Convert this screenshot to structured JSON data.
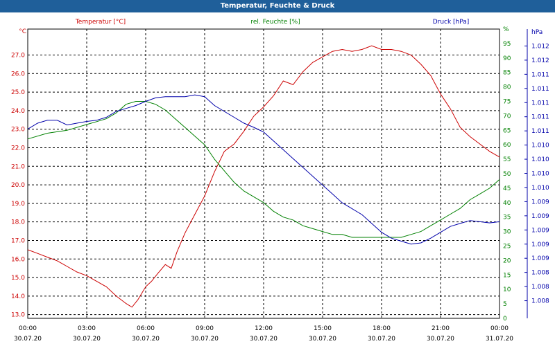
{
  "window": {
    "title": "Temperatur, Feuchte & Druck"
  },
  "chart_data": {
    "type": "line",
    "title": "Temperatur, Feuchte & Druck",
    "x_ticks": [
      {
        "t": 0,
        "time": "00:00",
        "date": "30.07.20"
      },
      {
        "t": 3,
        "time": "03:00",
        "date": "30.07.20"
      },
      {
        "t": 6,
        "time": "06:00",
        "date": "30.07.20"
      },
      {
        "t": 9,
        "time": "09:00",
        "date": "30.07.20"
      },
      {
        "t": 12,
        "time": "12:00",
        "date": "30.07.20"
      },
      {
        "t": 15,
        "time": "15:00",
        "date": "30.07.20"
      },
      {
        "t": 18,
        "time": "18:00",
        "date": "30.07.20"
      },
      {
        "t": 21,
        "time": "21:00",
        "date": "30.07.20"
      },
      {
        "t": 24,
        "time": "00:00",
        "date": "31.07.20"
      }
    ],
    "xlim": [
      0,
      24
    ],
    "axes": {
      "temperature": {
        "label": "Temperatur [°C]",
        "unit": "°C",
        "color": "#cc0000",
        "ylim": [
          12.8,
          28.4
        ],
        "ticks": [
          "13.0",
          "14.0",
          "15.0",
          "16.0",
          "17.0",
          "18.0",
          "19.0",
          "20.0",
          "21.0",
          "22.0",
          "23.0",
          "24.0",
          "25.0",
          "26.0",
          "27.0"
        ]
      },
      "humidity": {
        "label": "rel. Feuchte [%]",
        "unit": "%",
        "color": "#008000",
        "ylim": [
          0,
          100
        ],
        "ticks": [
          "0",
          "5",
          "10",
          "15",
          "20",
          "25",
          "30",
          "35",
          "40",
          "45",
          "50",
          "55",
          "60",
          "65",
          "70",
          "75",
          "80",
          "85",
          "90",
          "95",
          "%"
        ]
      },
      "pressure": {
        "label": "Druck [hPa]",
        "unit": "hPa",
        "color": "#0000aa",
        "ticks": [
          "hPa",
          "1.012",
          "1.012",
          "1.011",
          "1.011",
          "1.011",
          "1.011",
          "1.011",
          "1.010",
          "1.010",
          "1.010",
          "1.010",
          "1.009",
          "1.009",
          "1.009",
          "1.009",
          "1.009",
          "1.008",
          "1.008",
          "1.008"
        ]
      }
    },
    "series": [
      {
        "name": "Temperatur",
        "axis": "temperature",
        "color": "#cc0000",
        "x": [
          0,
          0.5,
          1,
          1.5,
          2,
          2.5,
          3,
          3.5,
          4,
          4.5,
          5,
          5.3,
          5.6,
          6,
          6.3,
          6.6,
          7,
          7.3,
          7.6,
          8,
          8.5,
          9,
          9.5,
          10,
          10.5,
          11,
          11.5,
          12,
          12.5,
          13,
          13.5,
          14,
          14.5,
          15,
          15.5,
          16,
          16.5,
          17,
          17.5,
          18,
          18.5,
          19,
          19.5,
          20,
          20.5,
          21,
          21.5,
          22,
          22.5,
          23,
          23.5,
          24
        ],
        "values": [
          16.5,
          16.3,
          16.1,
          15.9,
          15.6,
          15.3,
          15.1,
          14.8,
          14.5,
          14.0,
          13.6,
          13.4,
          13.8,
          14.5,
          14.8,
          15.2,
          15.7,
          15.5,
          16.4,
          17.4,
          18.4,
          19.4,
          20.7,
          21.8,
          22.2,
          22.9,
          23.7,
          24.2,
          24.8,
          25.6,
          25.4,
          26.1,
          26.6,
          26.9,
          27.2,
          27.3,
          27.2,
          27.3,
          27.5,
          27.3,
          27.3,
          27.2,
          27.0,
          26.5,
          25.9,
          24.9,
          24.1,
          23.1,
          22.6,
          22.2,
          21.8,
          21.5
        ]
      },
      {
        "name": "rel. Feuchte",
        "axis": "humidity",
        "color": "#008000",
        "x": [
          0,
          1,
          2,
          3,
          3.5,
          4,
          4.5,
          5,
          5.5,
          6,
          6.5,
          7,
          7.5,
          8,
          8.5,
          9,
          9.5,
          10,
          10.5,
          11,
          11.5,
          12,
          12.5,
          13,
          13.5,
          14,
          14.5,
          15,
          15.5,
          16,
          16.5,
          17,
          17.5,
          18,
          18.5,
          19,
          19.5,
          20,
          20.5,
          21,
          21.5,
          22,
          22.5,
          23,
          23.5,
          24
        ],
        "values": [
          62,
          64,
          65,
          67,
          68,
          69,
          71,
          74,
          75,
          75,
          74,
          72,
          69,
          66,
          63,
          60,
          55,
          51,
          47,
          44,
          42,
          40,
          37,
          35,
          34,
          32,
          31,
          30,
          29,
          29,
          28,
          28,
          28,
          28,
          28,
          28,
          29,
          30,
          32,
          34,
          36,
          38,
          41,
          43,
          45,
          48
        ]
      },
      {
        "name": "Druck",
        "axis": "pressure",
        "color": "#0000aa",
        "x": [
          0,
          0.5,
          1,
          1.5,
          2,
          2.5,
          3,
          3.5,
          4,
          4.5,
          5,
          5.5,
          6,
          6.5,
          7,
          7.5,
          8,
          8.5,
          9,
          9.5,
          10,
          10.5,
          11,
          11.5,
          12,
          12.5,
          13,
          13.5,
          14,
          14.5,
          15,
          15.5,
          16,
          16.5,
          17,
          17.5,
          18,
          18.5,
          19,
          19.5,
          20,
          20.5,
          21,
          21.5,
          22,
          22.5,
          23,
          23.5,
          24
        ],
        "values": [
          1.01105,
          1.01115,
          1.0112,
          1.0112,
          1.01112,
          1.01115,
          1.01118,
          1.0112,
          1.01125,
          1.01135,
          1.0114,
          1.01145,
          1.01152,
          1.01158,
          1.0116,
          1.0116,
          1.0116,
          1.01163,
          1.0116,
          1.01145,
          1.01135,
          1.01125,
          1.01115,
          1.01108,
          1.011,
          1.01085,
          1.0107,
          1.01055,
          1.0104,
          1.01025,
          1.0101,
          1.00995,
          1.0098,
          1.0097,
          1.0096,
          1.00945,
          1.0093,
          1.0092,
          1.00915,
          1.0091,
          1.00912,
          1.0092,
          1.0093,
          1.0094,
          1.00945,
          1.0095,
          1.00948,
          1.00946,
          1.00948
        ]
      }
    ]
  }
}
